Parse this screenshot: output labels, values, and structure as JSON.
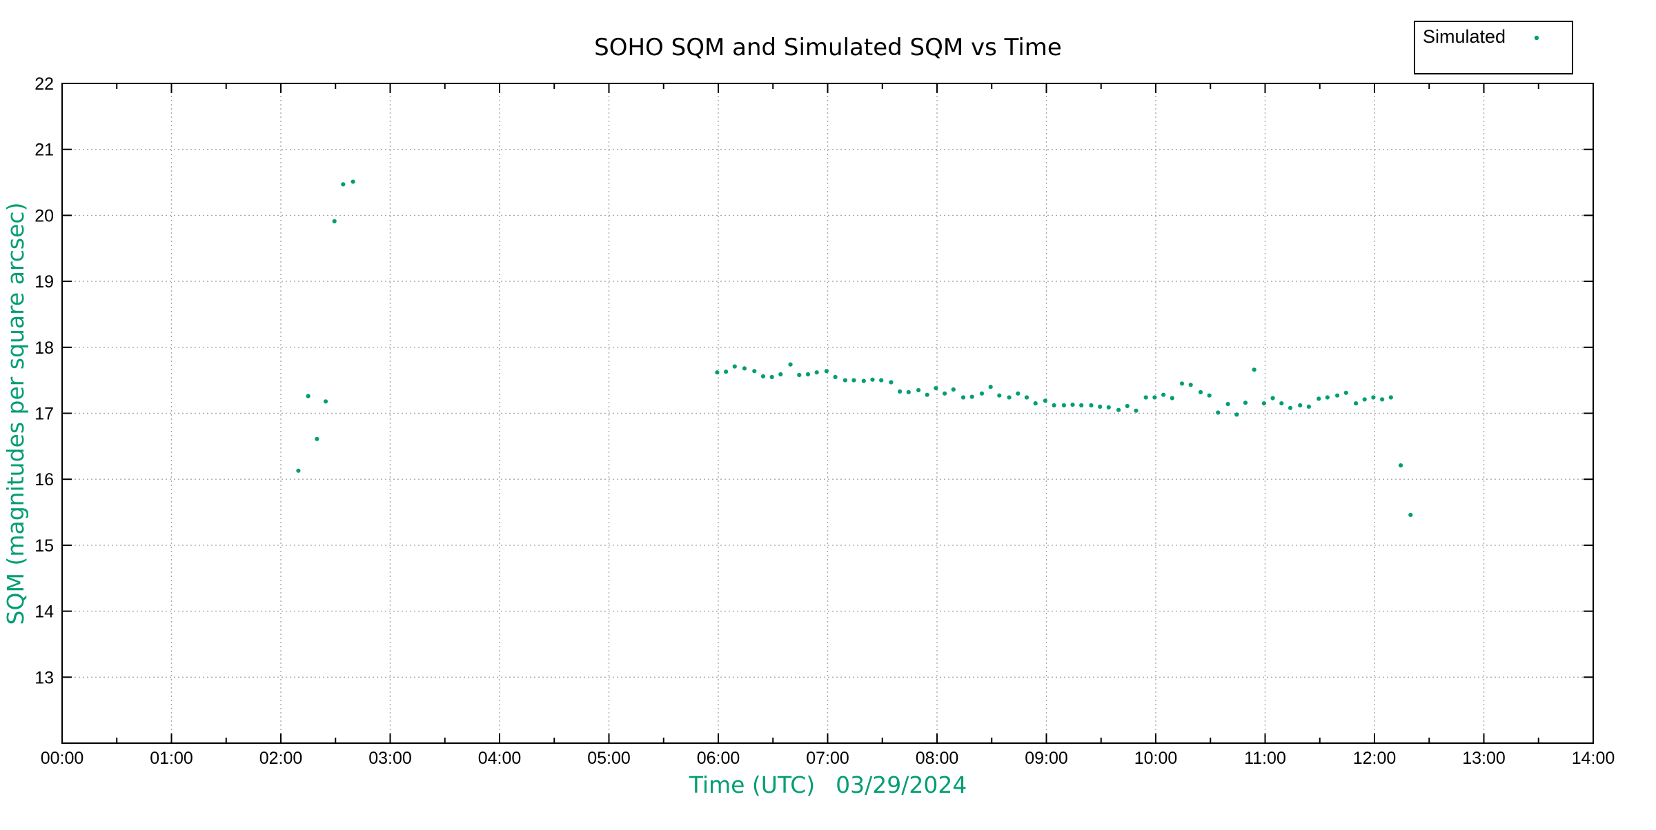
{
  "page": {
    "background": "#ffffff"
  },
  "chart_data": {
    "type": "scatter",
    "title": "SOHO SQM and Simulated SQM vs Time",
    "xlabel": "Time (UTC)",
    "date_label": "03/29/2024",
    "ylabel": "SQM (magnitudes per square arcsec)",
    "axis_label_color": "#029e73",
    "grid": true,
    "grid_color": "#a8a8a8",
    "border_color": "#000000",
    "xlim_hours": [
      0,
      14
    ],
    "ylim": [
      12,
      22
    ],
    "x_tick_hours": [
      0,
      1,
      2,
      3,
      4,
      5,
      6,
      7,
      8,
      9,
      10,
      11,
      12,
      13,
      14
    ],
    "x_tick_labels": [
      "00:00",
      "01:00",
      "02:00",
      "03:00",
      "04:00",
      "05:00",
      "06:00",
      "07:00",
      "08:00",
      "09:00",
      "10:00",
      "11:00",
      "12:00",
      "13:00",
      "14:00"
    ],
    "x_minor_tick_step_hours": 0.5,
    "y_ticks": [
      13,
      14,
      15,
      16,
      17,
      18,
      19,
      20,
      21,
      22
    ],
    "legend": {
      "label": "Simulated",
      "marker": "dot",
      "position": "top-right"
    },
    "series": [
      {
        "name": "Simulated",
        "marker": "dot",
        "color": "#029e73",
        "points": [
          [
            2.16,
            16.13
          ],
          [
            2.25,
            17.26
          ],
          [
            2.33,
            16.61
          ],
          [
            2.41,
            17.18
          ],
          [
            2.49,
            19.91
          ],
          [
            2.57,
            20.47
          ],
          [
            2.66,
            20.51
          ],
          [
            5.99,
            17.62
          ],
          [
            6.07,
            17.63
          ],
          [
            6.15,
            17.71
          ],
          [
            6.24,
            17.68
          ],
          [
            6.33,
            17.64
          ],
          [
            6.41,
            17.56
          ],
          [
            6.49,
            17.55
          ],
          [
            6.57,
            17.59
          ],
          [
            6.66,
            17.74
          ],
          [
            6.74,
            17.58
          ],
          [
            6.82,
            17.59
          ],
          [
            6.9,
            17.62
          ],
          [
            6.99,
            17.64
          ],
          [
            7.07,
            17.55
          ],
          [
            7.16,
            17.5
          ],
          [
            7.24,
            17.5
          ],
          [
            7.33,
            17.49
          ],
          [
            7.41,
            17.51
          ],
          [
            7.49,
            17.5
          ],
          [
            7.58,
            17.47
          ],
          [
            7.66,
            17.33
          ],
          [
            7.74,
            17.32
          ],
          [
            7.83,
            17.35
          ],
          [
            7.91,
            17.28
          ],
          [
            7.99,
            17.38
          ],
          [
            8.07,
            17.3
          ],
          [
            8.15,
            17.36
          ],
          [
            8.24,
            17.24
          ],
          [
            8.32,
            17.25
          ],
          [
            8.41,
            17.3
          ],
          [
            8.49,
            17.4
          ],
          [
            8.57,
            17.27
          ],
          [
            8.66,
            17.24
          ],
          [
            8.74,
            17.3
          ],
          [
            8.82,
            17.24
          ],
          [
            8.9,
            17.15
          ],
          [
            8.99,
            17.19
          ],
          [
            9.07,
            17.12
          ],
          [
            9.16,
            17.12
          ],
          [
            9.24,
            17.13
          ],
          [
            9.32,
            17.12
          ],
          [
            9.41,
            17.12
          ],
          [
            9.49,
            17.1
          ],
          [
            9.57,
            17.09
          ],
          [
            9.66,
            17.05
          ],
          [
            9.74,
            17.11
          ],
          [
            9.82,
            17.04
          ],
          [
            9.91,
            17.24
          ],
          [
            9.99,
            17.24
          ],
          [
            10.07,
            17.28
          ],
          [
            10.15,
            17.23
          ],
          [
            10.24,
            17.45
          ],
          [
            10.32,
            17.43
          ],
          [
            10.41,
            17.32
          ],
          [
            10.49,
            17.27
          ],
          [
            10.57,
            17.01
          ],
          [
            10.66,
            17.14
          ],
          [
            10.74,
            16.98
          ],
          [
            10.82,
            17.16
          ],
          [
            10.9,
            17.66
          ],
          [
            10.99,
            17.15
          ],
          [
            11.07,
            17.23
          ],
          [
            11.15,
            17.15
          ],
          [
            11.23,
            17.08
          ],
          [
            11.32,
            17.12
          ],
          [
            11.4,
            17.1
          ],
          [
            11.49,
            17.22
          ],
          [
            11.57,
            17.24
          ],
          [
            11.66,
            17.27
          ],
          [
            11.74,
            17.31
          ],
          [
            11.83,
            17.15
          ],
          [
            11.91,
            17.21
          ],
          [
            11.99,
            17.24
          ],
          [
            12.07,
            17.21
          ],
          [
            12.15,
            17.24
          ],
          [
            12.24,
            16.21
          ],
          [
            12.33,
            15.46
          ]
        ]
      }
    ]
  }
}
